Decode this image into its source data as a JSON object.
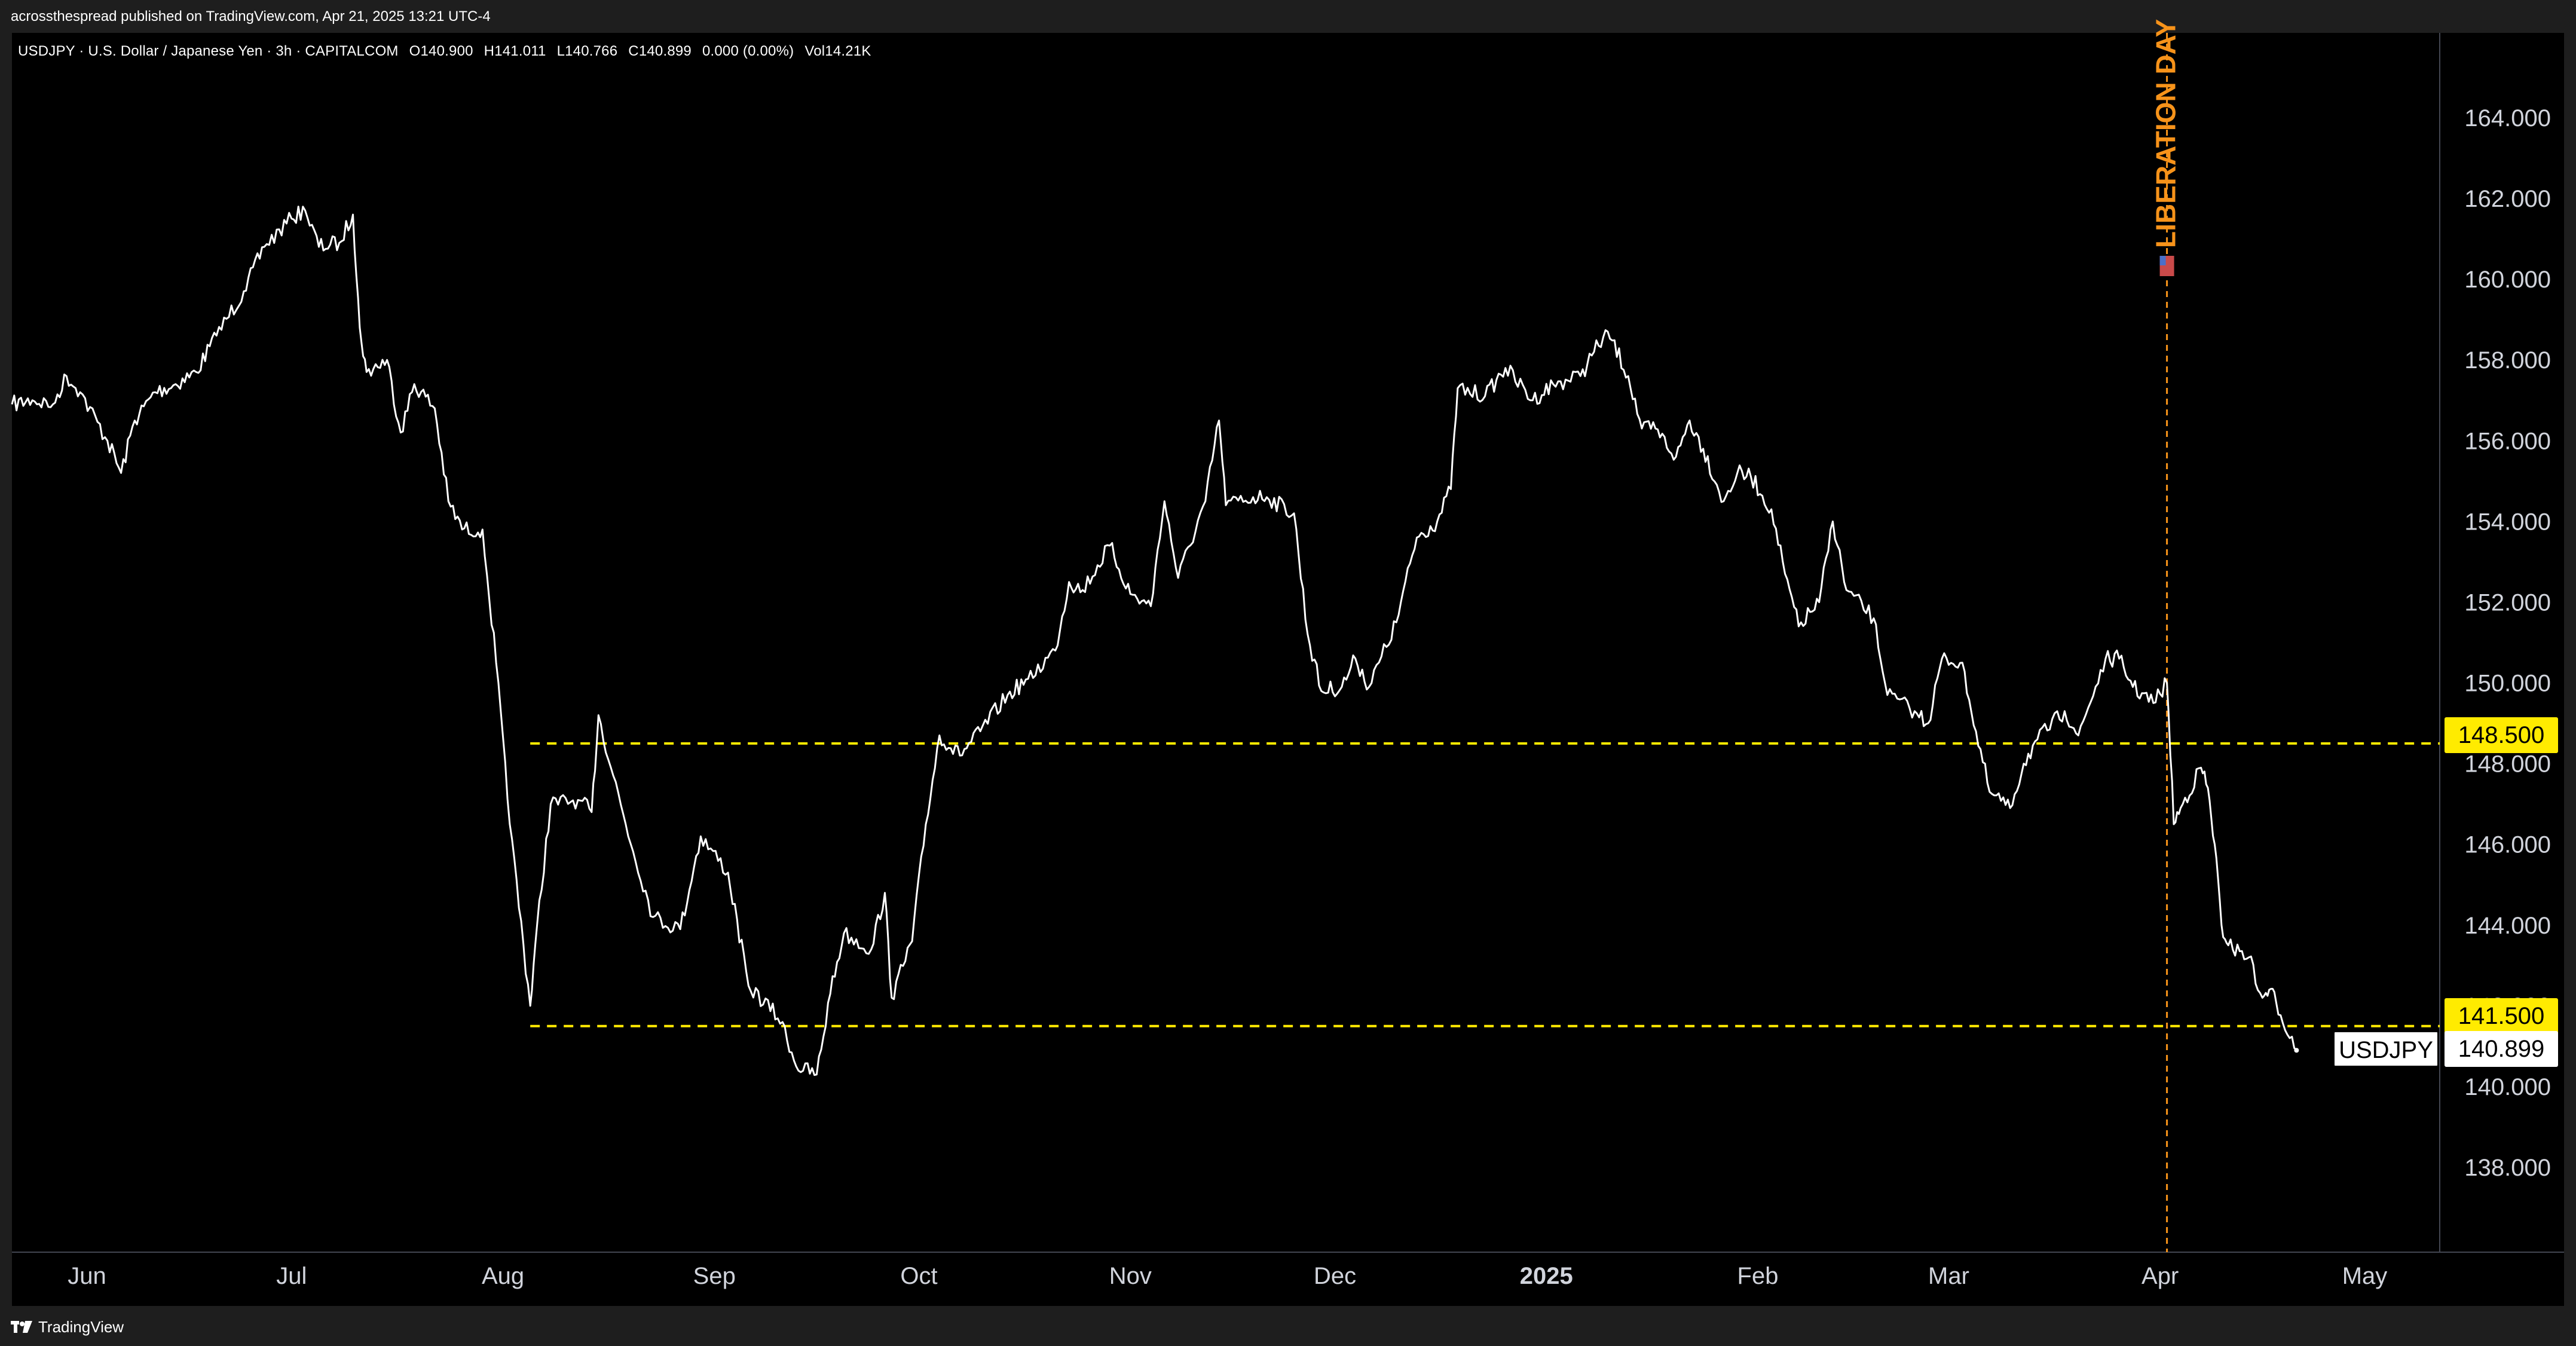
{
  "header": {
    "publisher_line": "acrossthespread published on TradingView.com, Apr 21, 2025 13:21 UTC-4"
  },
  "symbol_info": {
    "title": "USDJPY · U.S. Dollar / Japanese Yen · 3h · CAPITALCOM",
    "open": "O140.900",
    "high": "H141.011",
    "low": "L140.766",
    "close": "C140.899",
    "change": "0.000 (0.00%)",
    "volume": "Vol14.21K"
  },
  "footer": {
    "brand": "TradingView"
  },
  "annotations": {
    "event_label": "LIBERATION DAY",
    "event_date": "2025-04-02",
    "event_color": "#f7931a"
  },
  "price_tags": {
    "level_1": "148.500",
    "level_2": "141.500",
    "symbol": "USDJPY",
    "last": "140.899"
  },
  "colors": {
    "background": "#000000",
    "frame": "#1e1e1e",
    "line": "#ffffff",
    "level": "#ffeb00",
    "event": "#f7931a",
    "axis_text": "#d1d4dc"
  },
  "chart_data": {
    "type": "line",
    "title": "",
    "xlabel": "",
    "ylabel": "",
    "y_axis_side": "right",
    "ylim": [
      135.9,
      166.1
    ],
    "xlim": [
      "2024-05-21",
      "2025-05-12"
    ],
    "y_ticks": [
      "138.000",
      "140.000",
      "142.000",
      "144.000",
      "146.000",
      "148.000",
      "150.000",
      "152.000",
      "154.000",
      "156.000",
      "158.000",
      "160.000",
      "162.000",
      "164.000"
    ],
    "x_ticks": [
      {
        "label": "Jun",
        "date": "2024-06-01"
      },
      {
        "label": "Jul",
        "date": "2024-07-01"
      },
      {
        "label": "Aug",
        "date": "2024-08-01"
      },
      {
        "label": "Sep",
        "date": "2024-09-01"
      },
      {
        "label": "Oct",
        "date": "2024-10-01"
      },
      {
        "label": "Nov",
        "date": "2024-11-01"
      },
      {
        "label": "Dec",
        "date": "2024-12-01"
      },
      {
        "label": "2025",
        "date": "2025-01-01"
      },
      {
        "label": "Feb",
        "date": "2025-02-01"
      },
      {
        "label": "Mar",
        "date": "2025-03-01"
      },
      {
        "label": "Apr",
        "date": "2025-04-01"
      },
      {
        "label": "May",
        "date": "2025-05-01"
      }
    ],
    "horizontal_levels": [
      {
        "value": 148.5,
        "style": "dashed"
      },
      {
        "value": 141.5,
        "style": "dashed"
      }
    ],
    "series": [
      {
        "points": [
          {
            "x": "2024-05-21",
            "y": 156.9
          },
          {
            "x": "2024-05-24",
            "y": 157.0
          },
          {
            "x": "2024-05-27",
            "y": 156.9
          },
          {
            "x": "2024-05-29",
            "y": 157.6
          },
          {
            "x": "2024-05-31",
            "y": 157.2
          },
          {
            "x": "2024-06-04",
            "y": 156.0
          },
          {
            "x": "2024-06-06",
            "y": 155.2
          },
          {
            "x": "2024-06-08",
            "y": 156.5
          },
          {
            "x": "2024-06-11",
            "y": 157.2
          },
          {
            "x": "2024-06-14",
            "y": 157.4
          },
          {
            "x": "2024-06-17",
            "y": 157.7
          },
          {
            "x": "2024-06-20",
            "y": 158.6
          },
          {
            "x": "2024-06-24",
            "y": 159.7
          },
          {
            "x": "2024-06-27",
            "y": 160.8
          },
          {
            "x": "2024-07-01",
            "y": 161.5
          },
          {
            "x": "2024-07-03",
            "y": 161.7
          },
          {
            "x": "2024-07-05",
            "y": 160.8
          },
          {
            "x": "2024-07-08",
            "y": 160.9
          },
          {
            "x": "2024-07-10",
            "y": 161.6
          },
          {
            "x": "2024-07-11",
            "y": 158.8
          },
          {
            "x": "2024-07-12",
            "y": 157.7
          },
          {
            "x": "2024-07-15",
            "y": 158.0
          },
          {
            "x": "2024-07-17",
            "y": 156.2
          },
          {
            "x": "2024-07-19",
            "y": 157.4
          },
          {
            "x": "2024-07-22",
            "y": 156.8
          },
          {
            "x": "2024-07-24",
            "y": 154.5
          },
          {
            "x": "2024-07-26",
            "y": 153.8
          },
          {
            "x": "2024-07-29",
            "y": 153.8
          },
          {
            "x": "2024-07-31",
            "y": 150.5
          },
          {
            "x": "2024-08-02",
            "y": 146.5
          },
          {
            "x": "2024-08-05",
            "y": 142.0
          },
          {
            "x": "2024-08-06",
            "y": 144.0
          },
          {
            "x": "2024-08-08",
            "y": 147.0
          },
          {
            "x": "2024-08-12",
            "y": 147.1
          },
          {
            "x": "2024-08-14",
            "y": 146.8
          },
          {
            "x": "2024-08-15",
            "y": 149.2
          },
          {
            "x": "2024-08-19",
            "y": 146.5
          },
          {
            "x": "2024-08-23",
            "y": 144.2
          },
          {
            "x": "2024-08-27",
            "y": 143.9
          },
          {
            "x": "2024-08-30",
            "y": 146.2
          },
          {
            "x": "2024-09-03",
            "y": 145.3
          },
          {
            "x": "2024-09-06",
            "y": 142.5
          },
          {
            "x": "2024-09-11",
            "y": 141.6
          },
          {
            "x": "2024-09-13",
            "y": 140.5
          },
          {
            "x": "2024-09-16",
            "y": 140.3
          },
          {
            "x": "2024-09-18",
            "y": 142.3
          },
          {
            "x": "2024-09-20",
            "y": 143.8
          },
          {
            "x": "2024-09-24",
            "y": 143.4
          },
          {
            "x": "2024-09-26",
            "y": 144.8
          },
          {
            "x": "2024-09-27",
            "y": 142.2
          },
          {
            "x": "2024-09-30",
            "y": 143.6
          },
          {
            "x": "2024-10-02",
            "y": 146.5
          },
          {
            "x": "2024-10-04",
            "y": 148.7
          },
          {
            "x": "2024-10-07",
            "y": 148.2
          },
          {
            "x": "2024-10-10",
            "y": 148.8
          },
          {
            "x": "2024-10-14",
            "y": 149.7
          },
          {
            "x": "2024-10-17",
            "y": 150.1
          },
          {
            "x": "2024-10-21",
            "y": 150.8
          },
          {
            "x": "2024-10-23",
            "y": 152.5
          },
          {
            "x": "2024-10-25",
            "y": 152.3
          },
          {
            "x": "2024-10-29",
            "y": 153.4
          },
          {
            "x": "2024-11-01",
            "y": 152.2
          },
          {
            "x": "2024-11-04",
            "y": 151.9
          },
          {
            "x": "2024-11-06",
            "y": 154.5
          },
          {
            "x": "2024-11-08",
            "y": 152.6
          },
          {
            "x": "2024-11-12",
            "y": 154.5
          },
          {
            "x": "2024-11-14",
            "y": 156.5
          },
          {
            "x": "2024-11-15",
            "y": 154.4
          },
          {
            "x": "2024-11-19",
            "y": 154.6
          },
          {
            "x": "2024-11-21",
            "y": 154.6
          },
          {
            "x": "2024-11-25",
            "y": 154.2
          },
          {
            "x": "2024-11-27",
            "y": 151.2
          },
          {
            "x": "2024-11-29",
            "y": 149.8
          },
          {
            "x": "2024-12-02",
            "y": 149.9
          },
          {
            "x": "2024-12-04",
            "y": 150.6
          },
          {
            "x": "2024-12-06",
            "y": 149.9
          },
          {
            "x": "2024-12-10",
            "y": 151.5
          },
          {
            "x": "2024-12-13",
            "y": 153.6
          },
          {
            "x": "2024-12-16",
            "y": 154.0
          },
          {
            "x": "2024-12-18",
            "y": 154.8
          },
          {
            "x": "2024-12-19",
            "y": 157.3
          },
          {
            "x": "2024-12-23",
            "y": 157.1
          },
          {
            "x": "2024-12-26",
            "y": 157.8
          },
          {
            "x": "2024-12-30",
            "y": 157.0
          },
          {
            "x": "2025-01-02",
            "y": 157.4
          },
          {
            "x": "2025-01-06",
            "y": 157.6
          },
          {
            "x": "2025-01-08",
            "y": 158.2
          },
          {
            "x": "2025-01-10",
            "y": 158.7
          },
          {
            "x": "2025-01-13",
            "y": 157.6
          },
          {
            "x": "2025-01-15",
            "y": 156.3
          },
          {
            "x": "2025-01-17",
            "y": 156.3
          },
          {
            "x": "2025-01-20",
            "y": 155.6
          },
          {
            "x": "2025-01-22",
            "y": 156.5
          },
          {
            "x": "2025-01-24",
            "y": 155.8
          },
          {
            "x": "2025-01-27",
            "y": 154.5
          },
          {
            "x": "2025-01-29",
            "y": 155.2
          },
          {
            "x": "2025-01-31",
            "y": 155.1
          },
          {
            "x": "2025-02-03",
            "y": 154.3
          },
          {
            "x": "2025-02-05",
            "y": 152.7
          },
          {
            "x": "2025-02-07",
            "y": 151.4
          },
          {
            "x": "2025-02-10",
            "y": 152.0
          },
          {
            "x": "2025-02-12",
            "y": 154.0
          },
          {
            "x": "2025-02-14",
            "y": 152.3
          },
          {
            "x": "2025-02-18",
            "y": 151.6
          },
          {
            "x": "2025-02-20",
            "y": 149.7
          },
          {
            "x": "2025-02-24",
            "y": 149.3
          },
          {
            "x": "2025-02-26",
            "y": 149.0
          },
          {
            "x": "2025-02-28",
            "y": 150.6
          },
          {
            "x": "2025-03-03",
            "y": 150.5
          },
          {
            "x": "2025-03-05",
            "y": 148.8
          },
          {
            "x": "2025-03-07",
            "y": 147.3
          },
          {
            "x": "2025-03-10",
            "y": 146.9
          },
          {
            "x": "2025-03-12",
            "y": 148.0
          },
          {
            "x": "2025-03-14",
            "y": 148.6
          },
          {
            "x": "2025-03-18",
            "y": 149.3
          },
          {
            "x": "2025-03-20",
            "y": 148.7
          },
          {
            "x": "2025-03-24",
            "y": 150.6
          },
          {
            "x": "2025-03-26",
            "y": 150.6
          },
          {
            "x": "2025-03-28",
            "y": 149.9
          },
          {
            "x": "2025-03-31",
            "y": 149.5
          },
          {
            "x": "2025-04-02",
            "y": 150.0
          },
          {
            "x": "2025-04-03",
            "y": 146.5
          },
          {
            "x": "2025-04-04",
            "y": 146.9
          },
          {
            "x": "2025-04-07",
            "y": 147.9
          },
          {
            "x": "2025-04-08",
            "y": 147.4
          },
          {
            "x": "2025-04-09",
            "y": 146.0
          },
          {
            "x": "2025-04-10",
            "y": 144.0
          },
          {
            "x": "2025-04-11",
            "y": 143.5
          },
          {
            "x": "2025-04-14",
            "y": 143.2
          },
          {
            "x": "2025-04-16",
            "y": 142.2
          },
          {
            "x": "2025-04-17",
            "y": 142.4
          },
          {
            "x": "2025-04-18",
            "y": 142.1
          },
          {
            "x": "2025-04-21",
            "y": 140.9
          }
        ]
      }
    ]
  }
}
